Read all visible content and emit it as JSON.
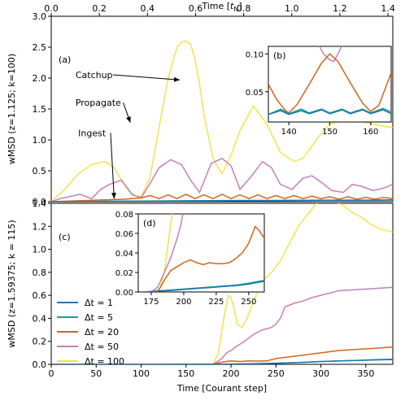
{
  "colors": {
    "dt1": "#1f77b4",
    "dt5": "#1a9e8f",
    "dt20": "#d4641a",
    "dt50": "#c77fba",
    "dt100": "#f2e44d"
  },
  "chart_data": [
    {
      "id": "top",
      "type": "line",
      "panel_label": "(a)",
      "xlabel_top": "Time [t_N]",
      "xlabel_top_base": "Time [",
      "xlabel_top_sub": "N",
      "xlabel_top_end": "]",
      "ylabel": "wMSD (z=1.125; k=100)",
      "xlim": [
        0,
        380
      ],
      "ylim": [
        0,
        3.0
      ],
      "yticks": [
        "0.0",
        "0.5",
        "1.0",
        "1.5",
        "2.0",
        "2.5",
        "3.0"
      ],
      "top_xlim": [
        0,
        1.42
      ],
      "top_xticks": [
        "0.0",
        "0.2",
        "0.4",
        "0.6",
        "0.8",
        "1.0",
        "1.2",
        "1.4"
      ],
      "annotations": [
        {
          "text": "Catchup",
          "x": 27,
          "y": 2.0,
          "target_x": 143,
          "target_y": 1.97
        },
        {
          "text": "Propagate",
          "x": 27,
          "y": 1.55,
          "target_x": 88,
          "target_y": 1.28
        },
        {
          "text": "Ingest",
          "x": 30,
          "y": 1.06,
          "target_x": 70,
          "target_y": 0.05
        }
      ],
      "series": [
        {
          "key": "dt100",
          "x": [
            0,
            15,
            30,
            45,
            60,
            70,
            80,
            90,
            100,
            110,
            120,
            130,
            140,
            145,
            150,
            155,
            160,
            165,
            170,
            180,
            190,
            200,
            210,
            225,
            240,
            250,
            255,
            260,
            270,
            280,
            290,
            300,
            310,
            320,
            330,
            340,
            350,
            360,
            370,
            380
          ],
          "y": [
            0,
            0.2,
            0.45,
            0.6,
            0.65,
            0.55,
            0.3,
            0.1,
            0.08,
            0.4,
            1.2,
            2.0,
            2.5,
            2.58,
            2.6,
            2.55,
            2.3,
            1.9,
            1.4,
            0.7,
            0.45,
            0.75,
            1.15,
            1.55,
            1.25,
            0.95,
            0.8,
            0.75,
            0.65,
            0.7,
            0.9,
            1.1,
            1.25,
            1.3,
            1.35,
            1.32,
            1.28,
            1.25,
            1.22,
            1.2
          ]
        },
        {
          "key": "dt50",
          "x": [
            0,
            10,
            20,
            32,
            45,
            55,
            65,
            78,
            90,
            100,
            110,
            120,
            133,
            145,
            155,
            165,
            178,
            190,
            200,
            210,
            222,
            235,
            245,
            255,
            268,
            280,
            290,
            300,
            312,
            325,
            335,
            345,
            358,
            370,
            380
          ],
          "y": [
            0,
            0.05,
            0.08,
            0.12,
            0.05,
            0.2,
            0.28,
            0.35,
            0.12,
            0.06,
            0.3,
            0.55,
            0.68,
            0.6,
            0.35,
            0.15,
            0.62,
            0.7,
            0.58,
            0.2,
            0.4,
            0.65,
            0.55,
            0.28,
            0.2,
            0.38,
            0.42,
            0.32,
            0.18,
            0.15,
            0.28,
            0.25,
            0.18,
            0.22,
            0.28
          ]
        },
        {
          "key": "dt20",
          "x": [
            0,
            20,
            40,
            60,
            80,
            100,
            110,
            120,
            130,
            140,
            150,
            160,
            170,
            180,
            190,
            200,
            210,
            220,
            230,
            240,
            250,
            260,
            270,
            280,
            290,
            300,
            310,
            320,
            330,
            340,
            350,
            360,
            370,
            380
          ],
          "y": [
            0,
            0.01,
            0.02,
            0.03,
            0.04,
            0.06,
            0.1,
            0.05,
            0.11,
            0.05,
            0.12,
            0.05,
            0.11,
            0.05,
            0.12,
            0.05,
            0.11,
            0.05,
            0.11,
            0.05,
            0.1,
            0.05,
            0.1,
            0.05,
            0.09,
            0.05,
            0.08,
            0.04,
            0.08,
            0.04,
            0.07,
            0.04,
            0.07,
            0.05
          ]
        },
        {
          "key": "dt5",
          "x": [
            0,
            50,
            100,
            150,
            200,
            250,
            300,
            350,
            380
          ],
          "y": [
            0,
            0.005,
            0.01,
            0.015,
            0.02,
            0.02,
            0.025,
            0.025,
            0.03
          ]
        },
        {
          "key": "dt1",
          "x": [
            0,
            50,
            100,
            150,
            200,
            250,
            300,
            350,
            380
          ],
          "y": [
            0,
            0.004,
            0.008,
            0.012,
            0.016,
            0.018,
            0.022,
            0.022,
            0.026
          ]
        }
      ],
      "inset": {
        "panel_label": "(b)",
        "xlim": [
          135,
          165
        ],
        "ylim": [
          0.01,
          0.11
        ],
        "xticks": [
          "140",
          "150",
          "160"
        ],
        "yticks": [
          "0.05",
          "0.10"
        ],
        "series": [
          {
            "key": "dt50",
            "x": [
              147,
              148.5,
              150,
              151,
              152,
              153,
              154
            ],
            "y": [
              0.115,
              0.1,
              0.092,
              0.09,
              0.1,
              0.112,
              0.118
            ]
          },
          {
            "key": "dt20",
            "x": [
              135,
              137,
              139,
              140,
              142,
              145,
              148,
              150,
              152,
              155,
              158,
              160,
              162,
              165
            ],
            "y": [
              0.06,
              0.04,
              0.026,
              0.022,
              0.033,
              0.06,
              0.088,
              0.1,
              0.09,
              0.062,
              0.035,
              0.024,
              0.032,
              0.075
            ]
          },
          {
            "key": "dt5",
            "x": [
              135,
              138,
              140,
              143,
              145,
              148,
              150,
              153,
              155,
              158,
              160,
              163,
              165
            ],
            "y": [
              0.02,
              0.027,
              0.021,
              0.027,
              0.022,
              0.027,
              0.022,
              0.027,
              0.022,
              0.027,
              0.022,
              0.028,
              0.023
            ]
          },
          {
            "key": "dt1",
            "x": [
              135,
              138,
              140,
              143,
              145,
              148,
              150,
              153,
              155,
              158,
              160,
              163,
              165
            ],
            "y": [
              0.02,
              0.025,
              0.02,
              0.025,
              0.021,
              0.026,
              0.021,
              0.026,
              0.021,
              0.026,
              0.021,
              0.026,
              0.021
            ]
          }
        ]
      }
    },
    {
      "id": "bottom",
      "type": "line",
      "panel_label": "(c)",
      "xlabel": "Time [Courant step]",
      "ylabel": "wMSD (z=1.59375; k = 115)",
      "xlim": [
        0,
        380
      ],
      "ylim": [
        0,
        1.4
      ],
      "xticks": [
        "0",
        "50",
        "100",
        "150",
        "200",
        "250",
        "300",
        "350"
      ],
      "yticks": [
        "0.0",
        "0.2",
        "0.4",
        "0.6",
        "0.8",
        "1.0",
        "1.2",
        "1.4"
      ],
      "legend": [
        "Δt = 1",
        "Δt = 5",
        "Δt = 20",
        "Δt = 50",
        "Δt = 100"
      ],
      "legend_placement": "lower-left",
      "series": [
        {
          "key": "dt100",
          "x": [
            0,
            100,
            180,
            186,
            192,
            197,
            200,
            203,
            207,
            212,
            218,
            225,
            235,
            245,
            255,
            265,
            275,
            285,
            295,
            305,
            315,
            325,
            335,
            345,
            355,
            365,
            380
          ],
          "y": [
            0,
            0,
            0,
            0.1,
            0.4,
            0.6,
            0.58,
            0.5,
            0.35,
            0.32,
            0.4,
            0.55,
            0.72,
            0.8,
            0.9,
            1.05,
            1.2,
            1.3,
            1.4,
            1.44,
            1.42,
            1.38,
            1.32,
            1.28,
            1.22,
            1.18,
            1.15
          ]
        },
        {
          "key": "dt50",
          "x": [
            0,
            100,
            180,
            190,
            195,
            200,
            205,
            215,
            225,
            235,
            245,
            250,
            255,
            260,
            270,
            280,
            290,
            300,
            310,
            320,
            340,
            360,
            380
          ],
          "y": [
            0,
            0,
            0,
            0.05,
            0.1,
            0.12,
            0.15,
            0.2,
            0.26,
            0.3,
            0.32,
            0.35,
            0.4,
            0.5,
            0.53,
            0.55,
            0.58,
            0.6,
            0.62,
            0.64,
            0.65,
            0.66,
            0.67
          ]
        },
        {
          "key": "dt20",
          "x": [
            0,
            100,
            180,
            190,
            200,
            210,
            220,
            230,
            240,
            250,
            260,
            270,
            280,
            290,
            300,
            320,
            340,
            360,
            380
          ],
          "y": [
            0,
            0,
            0,
            0.02,
            0.03,
            0.025,
            0.03,
            0.028,
            0.03,
            0.05,
            0.06,
            0.07,
            0.08,
            0.09,
            0.1,
            0.12,
            0.13,
            0.14,
            0.15
          ]
        },
        {
          "key": "dt5",
          "x": [
            0,
            100,
            200,
            240,
            260,
            280,
            300,
            320,
            340,
            360,
            380
          ],
          "y": [
            0,
            0,
            0.003,
            0.008,
            0.012,
            0.018,
            0.025,
            0.03,
            0.035,
            0.04,
            0.045
          ]
        },
        {
          "key": "dt1",
          "x": [
            0,
            100,
            200,
            240,
            260,
            280,
            300,
            320,
            340,
            360,
            380
          ],
          "y": [
            0,
            0,
            0.002,
            0.007,
            0.011,
            0.017,
            0.024,
            0.029,
            0.033,
            0.038,
            0.042
          ]
        }
      ],
      "inset": {
        "panel_label": "(d)",
        "xlim": [
          165,
          262
        ],
        "ylim": [
          0,
          0.08
        ],
        "xticks": [
          "175",
          "200",
          "225",
          "250"
        ],
        "yticks": [
          "0.00",
          "0.02",
          "0.04",
          "0.06",
          "0.08"
        ],
        "series": [
          {
            "key": "dt100",
            "x": [
              170,
              178,
              182,
              185,
              188,
              190,
              192
            ],
            "y": [
              0,
              0,
              0.005,
              0.02,
              0.05,
              0.07,
              0.085
            ]
          },
          {
            "key": "dt50",
            "x": [
              175,
              180,
              185,
              190,
              195,
              198,
              200
            ],
            "y": [
              0,
              0.005,
              0.02,
              0.035,
              0.055,
              0.07,
              0.085
            ]
          },
          {
            "key": "dt20",
            "x": [
              170,
              180,
              185,
              190,
              195,
              200,
              205,
              210,
              215,
              220,
              225,
              230,
              235,
              240,
              245,
              250,
              253,
              255,
              258,
              262
            ],
            "y": [
              0,
              0,
              0.012,
              0.022,
              0.026,
              0.03,
              0.033,
              0.03,
              0.028,
              0.03,
              0.029,
              0.029,
              0.03,
              0.034,
              0.04,
              0.05,
              0.06,
              0.067,
              0.063,
              0.055
            ]
          },
          {
            "key": "dt5",
            "x": [
              170,
              180,
              190,
              200,
              210,
              220,
              230,
              240,
              250,
              262
            ],
            "y": [
              0,
              0.001,
              0.002,
              0.003,
              0.004,
              0.005,
              0.006,
              0.007,
              0.009,
              0.012
            ]
          },
          {
            "key": "dt1",
            "x": [
              170,
              180,
              190,
              200,
              210,
              220,
              230,
              240,
              250,
              262
            ],
            "y": [
              0,
              0.001,
              0.0015,
              0.0025,
              0.0035,
              0.0045,
              0.0055,
              0.0065,
              0.008,
              0.011
            ]
          }
        ]
      }
    }
  ]
}
